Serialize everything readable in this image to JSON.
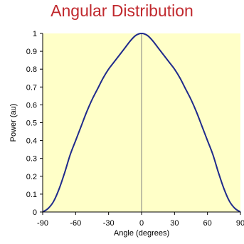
{
  "chart_data": {
    "type": "line",
    "title": "Angular Distribution",
    "xlabel": "Angle (degrees)",
    "ylabel": "Power (au)",
    "xlim": [
      -90,
      90
    ],
    "ylim": [
      0,
      1
    ],
    "xticks": [
      -90,
      -60,
      -30,
      0,
      30,
      60,
      90
    ],
    "yticks": [
      0,
      0.1,
      0.2,
      0.3,
      0.4,
      0.5,
      0.6,
      0.7,
      0.8,
      0.9,
      1
    ],
    "grid": false,
    "colors": {
      "plot_bg": "#ffffc8",
      "line": "#1f2a8c",
      "title": "#c0282d",
      "vline": "#808080"
    },
    "series": [
      {
        "x": [
          -90,
          -85,
          -80,
          -75,
          -70,
          -65,
          -60,
          -55,
          -50,
          -45,
          -40,
          -35,
          -30,
          -25,
          -20,
          -15,
          -10,
          -5,
          0,
          5,
          10,
          15,
          20,
          25,
          30,
          35,
          40,
          45,
          50,
          55,
          60,
          65,
          70,
          75,
          80,
          85,
          90
        ],
        "values": [
          0.0,
          0.02,
          0.06,
          0.13,
          0.22,
          0.32,
          0.4,
          0.48,
          0.56,
          0.63,
          0.69,
          0.75,
          0.8,
          0.84,
          0.88,
          0.92,
          0.96,
          0.99,
          1.0,
          0.99,
          0.96,
          0.92,
          0.88,
          0.84,
          0.8,
          0.75,
          0.69,
          0.63,
          0.56,
          0.48,
          0.4,
          0.32,
          0.22,
          0.13,
          0.06,
          0.02,
          0.0
        ]
      }
    ]
  }
}
